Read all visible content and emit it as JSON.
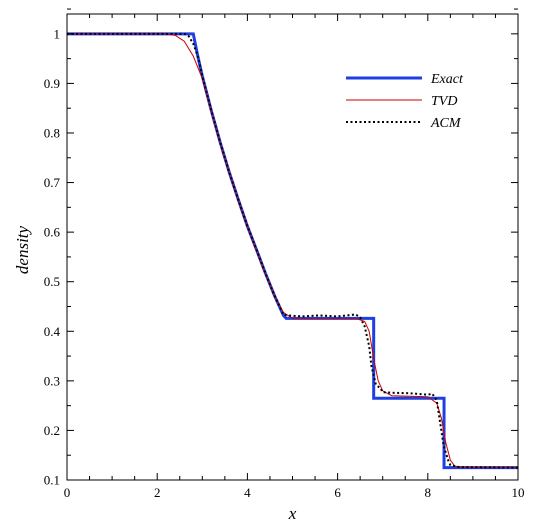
{
  "chart_data": {
    "type": "line",
    "xlabel": "x",
    "ylabel": "density",
    "xlim": [
      0,
      10
    ],
    "ylim": [
      0.1,
      1.04
    ],
    "xticks": [
      0,
      2,
      4,
      6,
      8,
      10
    ],
    "yticks": [
      0.1,
      0.2,
      0.3,
      0.4,
      0.5,
      0.6,
      0.7,
      0.8,
      0.9,
      1
    ],
    "xtick_labels": [
      "0",
      "2",
      "4",
      "6",
      "8",
      "10"
    ],
    "ytick_labels": [
      "0.1",
      "0.2",
      "0.3",
      "0.4",
      "0.5",
      "0.6",
      "0.7",
      "0.8",
      "0.9",
      "1"
    ],
    "grid": false,
    "legend_position": "top-right",
    "series": [
      {
        "name": "Exact",
        "color": "#1f3fe0",
        "style": "solid-thick",
        "x": [
          0,
          2.8,
          2.9,
          3.0,
          3.2,
          3.4,
          3.6,
          3.8,
          4.0,
          4.2,
          4.4,
          4.6,
          4.8,
          4.86,
          6.8,
          6.8,
          8.36,
          8.36,
          10
        ],
        "y": [
          1.0,
          1.0,
          0.955,
          0.915,
          0.845,
          0.78,
          0.72,
          0.665,
          0.612,
          0.565,
          0.517,
          0.472,
          0.432,
          0.426,
          0.426,
          0.265,
          0.265,
          0.125,
          0.125
        ]
      },
      {
        "name": "TVD",
        "color": "#cc0000",
        "style": "solid-thin",
        "x": [
          0,
          2.2,
          2.4,
          2.6,
          2.8,
          3.0,
          3.2,
          3.4,
          3.6,
          3.8,
          4.0,
          4.2,
          4.4,
          4.6,
          4.8,
          5.0,
          6.4,
          6.6,
          6.7,
          6.8,
          6.9,
          7.0,
          7.2,
          8.0,
          8.2,
          8.3,
          8.4,
          8.5,
          8.6,
          8.8,
          10
        ],
        "y": [
          1.0,
          1.0,
          0.997,
          0.985,
          0.955,
          0.91,
          0.843,
          0.778,
          0.718,
          0.663,
          0.61,
          0.562,
          0.515,
          0.471,
          0.438,
          0.426,
          0.426,
          0.42,
          0.4,
          0.345,
          0.3,
          0.28,
          0.27,
          0.268,
          0.255,
          0.225,
          0.175,
          0.14,
          0.128,
          0.125,
          0.125
        ]
      },
      {
        "name": "ACM",
        "color": "#000000",
        "style": "dotted",
        "x": [
          0,
          2.6,
          2.7,
          2.8,
          2.9,
          3.0,
          3.2,
          3.4,
          3.6,
          3.8,
          4.0,
          4.2,
          4.4,
          4.6,
          4.8,
          4.9,
          5.2,
          5.6,
          6.0,
          6.2,
          6.4,
          6.5,
          6.6,
          6.7,
          6.75,
          6.85,
          6.95,
          7.0,
          7.2,
          7.6,
          8.0,
          8.1,
          8.2,
          8.25,
          8.35,
          8.45,
          8.5,
          8.7,
          10
        ],
        "y": [
          1.0,
          1.0,
          0.995,
          0.98,
          0.955,
          0.915,
          0.845,
          0.78,
          0.72,
          0.665,
          0.612,
          0.565,
          0.517,
          0.472,
          0.433,
          0.432,
          0.43,
          0.432,
          0.43,
          0.432,
          0.434,
          0.428,
          0.41,
          0.37,
          0.33,
          0.292,
          0.285,
          0.277,
          0.276,
          0.275,
          0.272,
          0.274,
          0.26,
          0.23,
          0.17,
          0.14,
          0.13,
          0.126,
          0.125
        ]
      }
    ]
  }
}
